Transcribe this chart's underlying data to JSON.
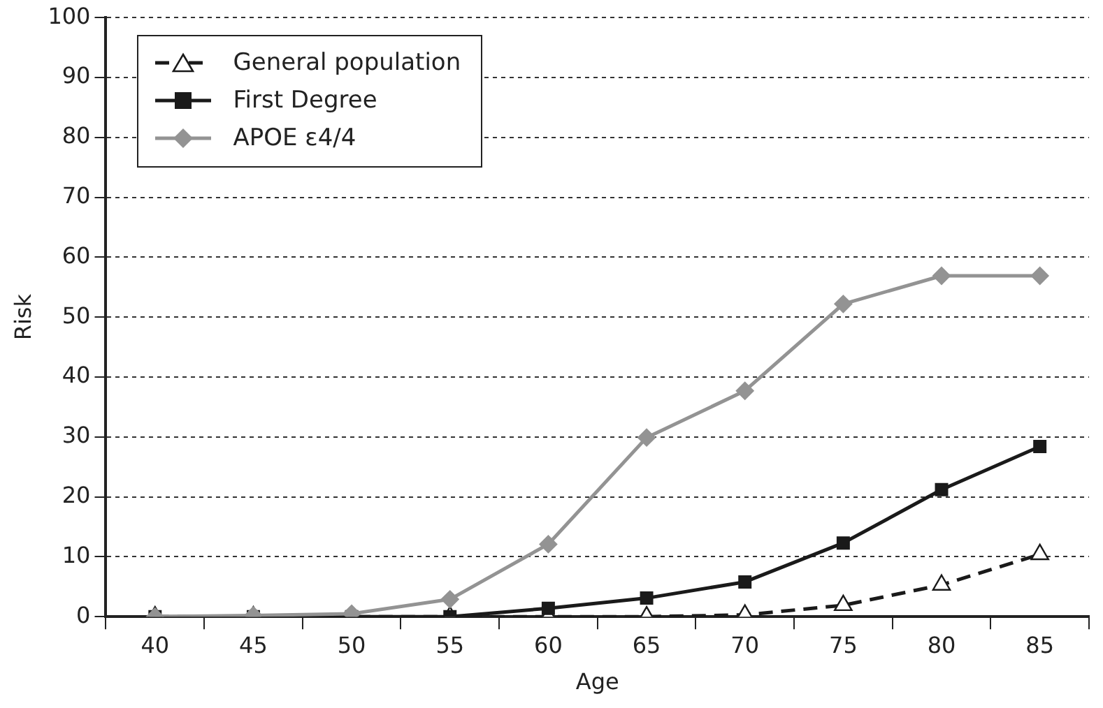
{
  "chart_data": {
    "type": "line",
    "xlabel": "Age",
    "ylabel": "Risk",
    "categories": [
      "40",
      "45",
      "50",
      "55",
      "60",
      "65",
      "70",
      "75",
      "80",
      "85"
    ],
    "ylim": [
      0,
      100
    ],
    "yticks": [
      0,
      10,
      20,
      30,
      40,
      50,
      60,
      70,
      80,
      90,
      100
    ],
    "grid": "y",
    "legend": "top left",
    "series": [
      {
        "name": "General population",
        "color": "#1a1a1a",
        "marker": "triangle",
        "line_style": "dashed",
        "values": [
          0,
          0,
          0,
          0,
          0,
          0,
          0.3,
          1.9,
          5.3,
          10.4
        ]
      },
      {
        "name": "First Degree",
        "color": "#1a1a1a",
        "marker": "square",
        "line_style": "solid",
        "values": [
          0,
          0,
          0,
          0,
          1.4,
          3.1,
          5.8,
          12.3,
          21.2,
          28.4
        ]
      },
      {
        "name": "APOE ε4/4",
        "color": "#939393",
        "marker": "diamond",
        "line_style": "solid",
        "values": [
          0,
          0.2,
          0.5,
          2.9,
          12.1,
          29.9,
          37.7,
          52.2,
          56.9,
          56.9
        ]
      }
    ]
  }
}
